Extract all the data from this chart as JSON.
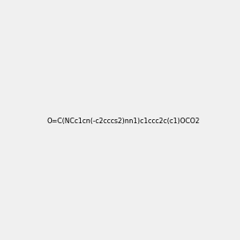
{
  "smiles": "O=C(NCc1cn(-c2cccs2)nn1)c1ccc2c(c1)OCO2",
  "bg_color": "#f0f0f0",
  "title": "",
  "figsize": [
    3.0,
    3.0
  ],
  "dpi": 100
}
